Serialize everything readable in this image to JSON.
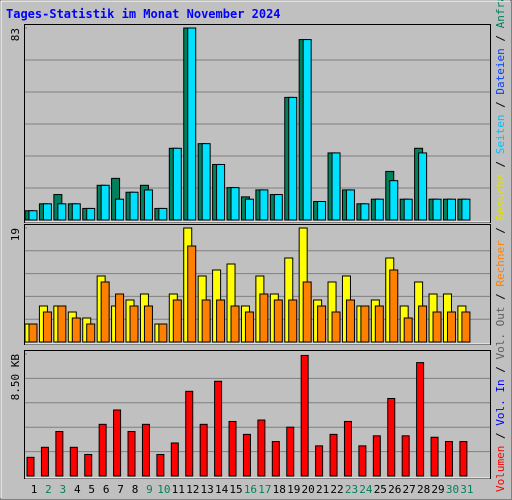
{
  "title": "Tages-Statistik im Monat November 2024",
  "legend_separator": " / ",
  "legend": [
    {
      "label": "Volumen",
      "color": "#ff0000"
    },
    {
      "label": "Vol. In",
      "color": "#0000ff"
    },
    {
      "label": "Vol. Out",
      "color": "#606060"
    },
    {
      "label": "Rechner",
      "color": "#ff8000"
    },
    {
      "label": "Besuche",
      "color": "#e0e000"
    },
    {
      "label": "Seiten",
      "color": "#00c0ff"
    },
    {
      "label": "Dateien",
      "color": "#0040ff"
    },
    {
      "label": "Anfragen",
      "color": "#00805c"
    }
  ],
  "categories": [
    "1",
    "2",
    "3",
    "4",
    "5",
    "6",
    "7",
    "8",
    "9",
    "10",
    "11",
    "12",
    "13",
    "14",
    "15",
    "16",
    "17",
    "18",
    "19",
    "20",
    "21",
    "22",
    "23",
    "24",
    "25",
    "26",
    "27",
    "28",
    "29",
    "30",
    "31"
  ],
  "category_colors": [
    "#000000",
    "#00805c",
    "#00805c",
    "#000000",
    "#000000",
    "#000000",
    "#000000",
    "#000000",
    "#00805c",
    "#00805c",
    "#000000",
    "#000000",
    "#000000",
    "#000000",
    "#000000",
    "#00805c",
    "#00805c",
    "#000000",
    "#000000",
    "#000000",
    "#000000",
    "#000000",
    "#00805c",
    "#00805c",
    "#000000",
    "#000000",
    "#000000",
    "#000000",
    "#000000",
    "#00805c",
    "#00805c"
  ],
  "chart_data": [
    {
      "type": "bar",
      "ylim": [
        0,
        83
      ],
      "yticks": [
        83
      ],
      "series": [
        {
          "color": "#00805c",
          "values": [
            4,
            7,
            11,
            7,
            5,
            15,
            18,
            12,
            15,
            5,
            31,
            83,
            33,
            24,
            14,
            10,
            13,
            11,
            53,
            78,
            8,
            29,
            13,
            7,
            9,
            21,
            9,
            31,
            9,
            9,
            9
          ]
        },
        {
          "color": "#00e0ff",
          "values": [
            4,
            7,
            7,
            7,
            5,
            15,
            9,
            12,
            13,
            5,
            31,
            83,
            33,
            24,
            14,
            9,
            13,
            11,
            53,
            78,
            8,
            29,
            13,
            7,
            9,
            17,
            9,
            29,
            9,
            9,
            9
          ]
        }
      ]
    },
    {
      "type": "bar",
      "ylim": [
        0,
        19
      ],
      "yticks": [
        19
      ],
      "series": [
        {
          "color": "#ffff00",
          "values": [
            3,
            6,
            6,
            5,
            4,
            11,
            6,
            7,
            8,
            3,
            8,
            19,
            11,
            12,
            13,
            6,
            11,
            8,
            14,
            19,
            7,
            10,
            11,
            6,
            7,
            14,
            6,
            10,
            8,
            8,
            6
          ]
        },
        {
          "color": "#ff8000",
          "values": [
            3,
            5,
            6,
            4,
            3,
            10,
            8,
            6,
            6,
            3,
            7,
            16,
            7,
            7,
            6,
            5,
            8,
            7,
            7,
            10,
            6,
            5,
            7,
            6,
            6,
            12,
            4,
            6,
            5,
            5,
            5
          ]
        }
      ]
    },
    {
      "type": "bar",
      "ylim": [
        0,
        8.5
      ],
      "yticks": [
        {
          "value": 8.5,
          "label": "8.50 KB"
        }
      ],
      "series": [
        {
          "color": "#ff0000",
          "values": [
            1.3,
            2.0,
            3.1,
            2.0,
            1.5,
            3.6,
            4.6,
            3.1,
            3.6,
            1.5,
            2.3,
            5.9,
            3.6,
            6.6,
            3.8,
            2.9,
            3.9,
            2.4,
            3.4,
            8.4,
            2.1,
            2.9,
            3.8,
            2.1,
            2.8,
            5.4,
            2.8,
            7.9,
            2.7,
            2.4,
            2.4
          ]
        }
      ]
    }
  ]
}
